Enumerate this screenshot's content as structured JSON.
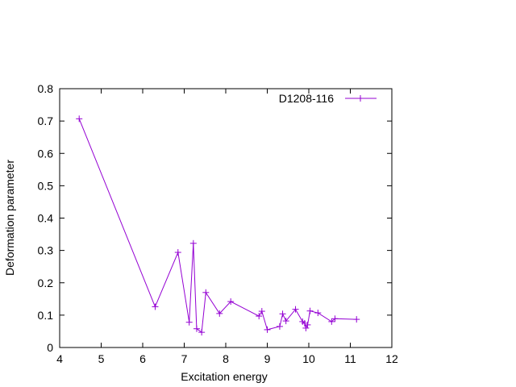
{
  "chart_data": {
    "type": "line",
    "title": "",
    "xlabel": "Excitation energy",
    "ylabel": "Deformation parameter",
    "xlim": [
      4,
      12
    ],
    "ylim": [
      0,
      0.8
    ],
    "xticks": [
      "4",
      "5",
      "6",
      "7",
      "8",
      "9",
      "10",
      "11",
      "12"
    ],
    "yticks": [
      "0",
      "0.1",
      "0.2",
      "0.3",
      "0.4",
      "0.5",
      "0.6",
      "0.7",
      "0.8"
    ],
    "grid": false,
    "legend_position": "top-right",
    "marker": "plus",
    "series": [
      {
        "name": "D1208-116",
        "color": "#9400d3",
        "x": [
          4.47,
          6.3,
          6.85,
          7.12,
          7.22,
          7.3,
          7.42,
          7.52,
          7.85,
          8.12,
          8.8,
          8.87,
          9.0,
          9.3,
          9.37,
          9.45,
          9.68,
          9.85,
          9.9,
          9.93,
          9.97,
          10.03,
          10.22,
          10.55,
          10.63,
          11.15
        ],
        "y": [
          0.707,
          0.126,
          0.294,
          0.078,
          0.322,
          0.058,
          0.047,
          0.17,
          0.105,
          0.142,
          0.097,
          0.112,
          0.055,
          0.065,
          0.104,
          0.082,
          0.118,
          0.08,
          0.075,
          0.06,
          0.07,
          0.113,
          0.107,
          0.08,
          0.089,
          0.087
        ]
      }
    ]
  }
}
